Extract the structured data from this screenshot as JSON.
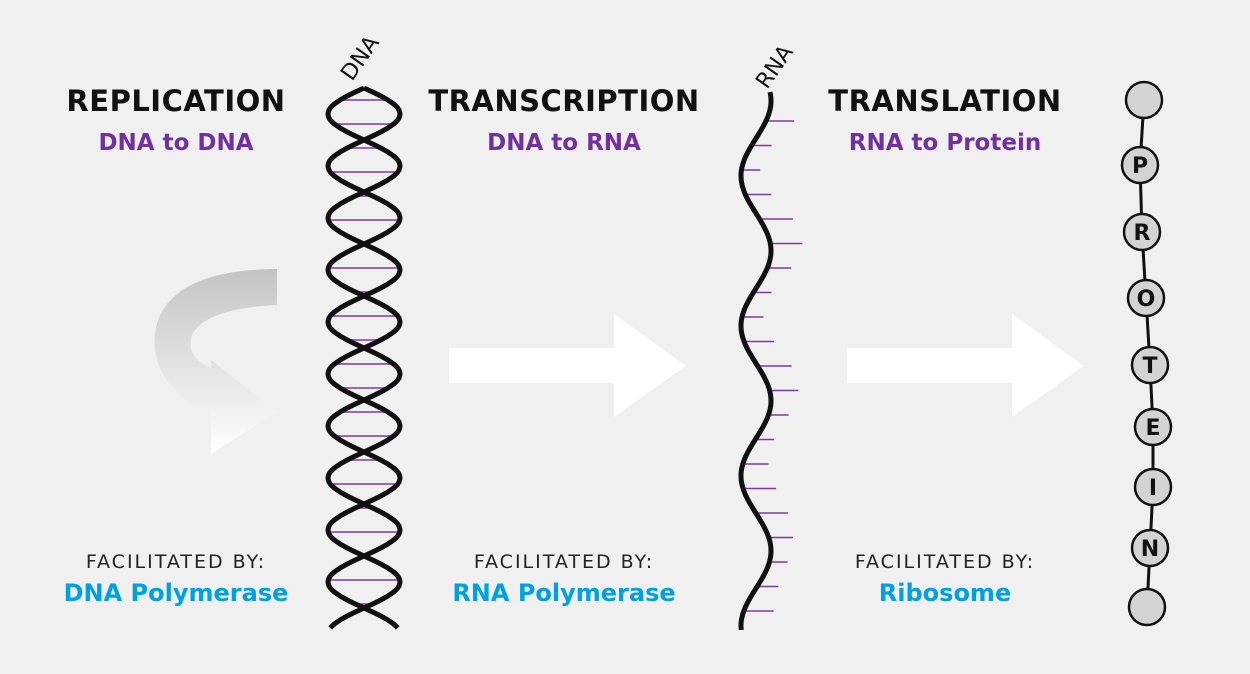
{
  "steps": [
    {
      "title": "REPLICATION",
      "subtitle": "DNA to DNA",
      "facilitated_label": "FACILITATED BY:",
      "enzyme": "DNA Polymerase"
    },
    {
      "title": "TRANSCRIPTION",
      "subtitle": "DNA to RNA",
      "facilitated_label": "FACILITATED BY:",
      "enzyme": "RNA Polymerase"
    },
    {
      "title": "TRANSLATION",
      "subtitle": "RNA to Protein",
      "facilitated_label": "FACILITATED BY:",
      "enzyme": "Ribosome"
    }
  ],
  "dna_label": "DNA",
  "rna_label": "RNA",
  "protein_letters": [
    "P",
    "R",
    "O",
    "T",
    "E",
    "I",
    "N"
  ],
  "colors": {
    "background": "#f0f0f0",
    "heading": "#111111",
    "subtitle_purple": "#7030a0",
    "enzyme_blue": "#00a0e3",
    "rung_purple": "#7a3c9c",
    "arrow_white": "#ffffff",
    "bead_grey": "#d3d3d3"
  }
}
